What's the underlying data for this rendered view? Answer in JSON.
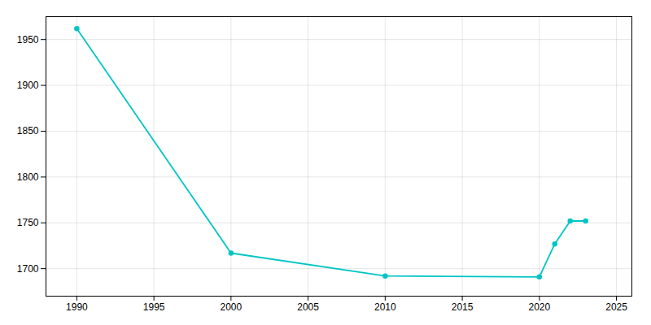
{
  "chart_data": {
    "type": "line",
    "x": [
      1990,
      2000,
      2010,
      2020,
      2021,
      2022,
      2023
    ],
    "values": [
      1962,
      1717,
      1692,
      1691,
      1727,
      1752,
      1752
    ],
    "color": "#00C5C5",
    "marker": "circle",
    "xlim": [
      1988,
      2026
    ],
    "ylim": [
      1670,
      1975
    ],
    "xticks": [
      1990,
      1995,
      2000,
      2005,
      2010,
      2015,
      2020,
      2025
    ],
    "yticks": [
      1700,
      1750,
      1800,
      1850,
      1900,
      1950
    ],
    "grid": true
  }
}
